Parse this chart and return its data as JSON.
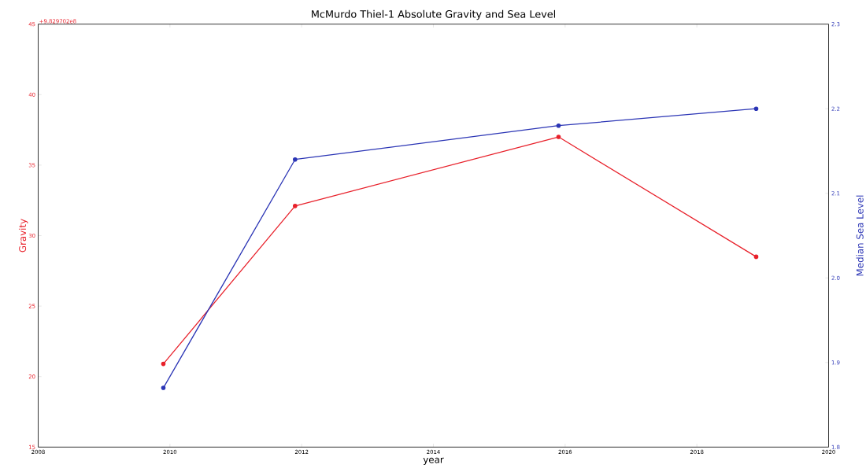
{
  "chart_data": {
    "type": "line",
    "title": "McMurdo Thiel-1 Absolute Gravity and Sea Level",
    "xlabel": "year",
    "ylabel": "Gravity",
    "y2label": "Median Sea Level",
    "annotations": [
      "+9.829702e8"
    ],
    "xlim": [
      2008,
      2020
    ],
    "xticks": [
      2008,
      2010,
      2012,
      2014,
      2016,
      2018,
      2020
    ],
    "ylim": [
      15,
      45
    ],
    "yticks": [
      15,
      20,
      25,
      30,
      35,
      40,
      45
    ],
    "y2lim": [
      1.8,
      2.3
    ],
    "y2ticks": [
      1.8,
      1.9,
      {
        "value": 2.0,
        "label": "2.0"
      },
      2.1,
      2.2,
      2.3
    ],
    "marker": "circle",
    "line_style": "solid",
    "grid": false,
    "x": [
      2009.9,
      2011.9,
      2015.9,
      2018.9
    ],
    "series": [
      {
        "color": "#e8202a",
        "axis": "y",
        "values": [
          20.9,
          32.1,
          37.0,
          28.5
        ]
      },
      {
        "color": "#2b35b5",
        "axis": "y2",
        "values": [
          1.87,
          2.14,
          2.18,
          2.2
        ]
      }
    ]
  }
}
